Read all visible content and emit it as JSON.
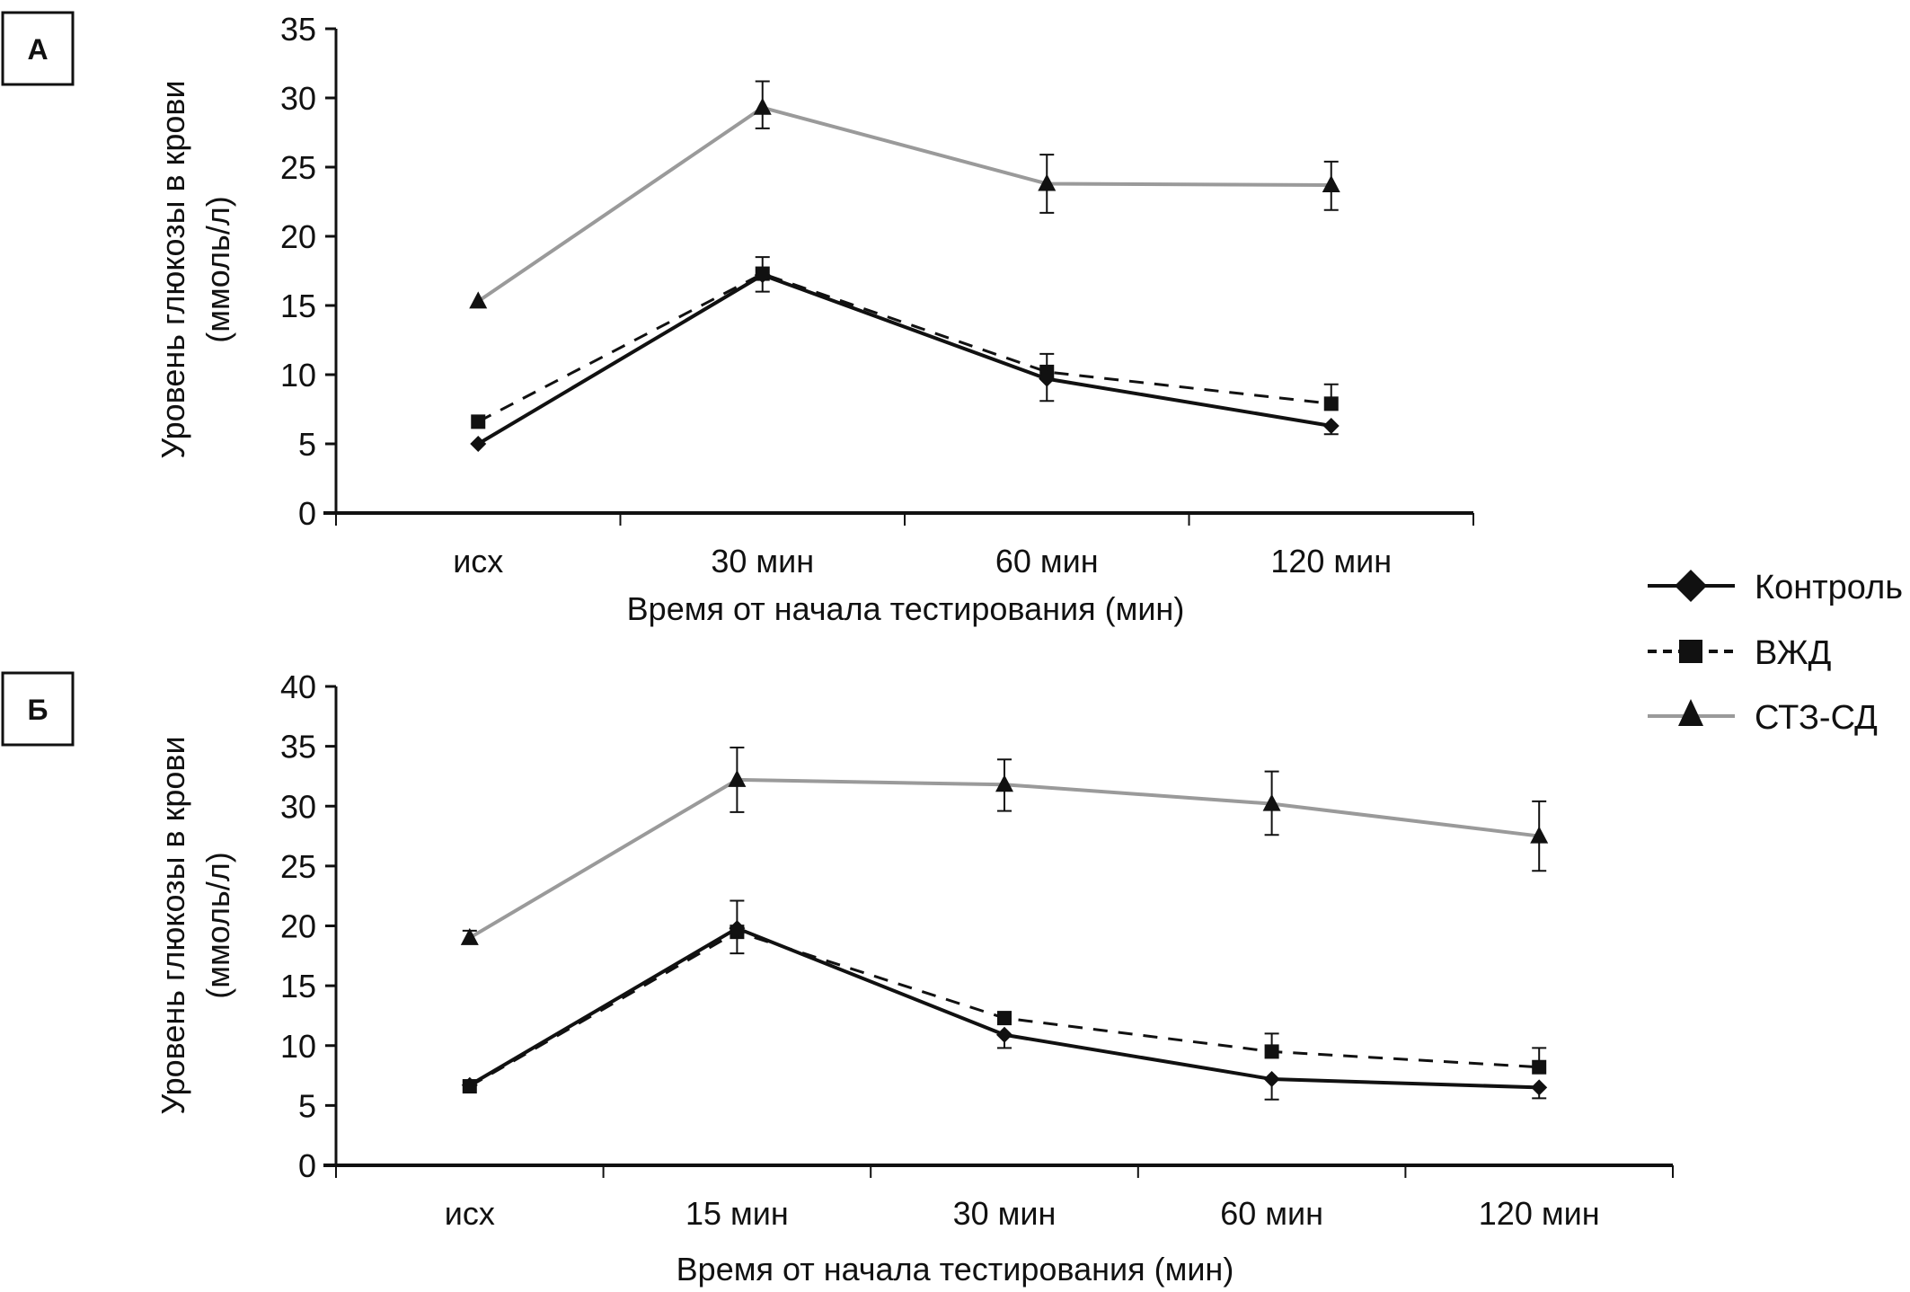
{
  "chart_data": [
    {
      "type": "line",
      "panel_label": "А",
      "title": "",
      "xlabel": "Время от начала тестирования (мин)",
      "ylabel": [
        "Уровень глюкозы в крови",
        "(ммоль/л)"
      ],
      "categories": [
        "исх",
        "30 мин",
        "60 мин",
        "120 мин"
      ],
      "ylim": [
        0,
        35
      ],
      "yticks": [
        0,
        5,
        10,
        15,
        20,
        25,
        30,
        35
      ],
      "grid": false,
      "series": [
        {
          "name": "Контроль",
          "style": "solid-black",
          "marker": "diamond",
          "values": [
            5.0,
            17.2,
            9.7,
            6.3
          ],
          "err_low": [
            null,
            16.0,
            8.1,
            5.7
          ],
          "err_high": [
            null,
            null,
            null,
            null
          ]
        },
        {
          "name": "ВЖД",
          "style": "dashed-black",
          "marker": "square",
          "values": [
            6.6,
            17.3,
            10.2,
            7.9
          ],
          "err_low": [
            null,
            null,
            null,
            null
          ],
          "err_high": [
            null,
            18.5,
            11.5,
            9.3
          ]
        },
        {
          "name": "СТЗ-СД",
          "style": "solid-gray",
          "marker": "triangle",
          "values": [
            15.3,
            29.3,
            23.8,
            23.7
          ],
          "err_low": [
            null,
            27.8,
            21.7,
            21.9
          ],
          "err_high": [
            null,
            31.2,
            25.9,
            25.4
          ]
        }
      ]
    },
    {
      "type": "line",
      "panel_label": "Б",
      "title": "",
      "xlabel": "Время от начала тестирования (мин)",
      "ylabel": [
        "Уровень глюкозы в крови",
        "(ммоль/л)"
      ],
      "categories": [
        "исх",
        "15 мин",
        "30 мин",
        "60 мин",
        "120 мин"
      ],
      "ylim": [
        0,
        40
      ],
      "yticks": [
        0,
        5,
        10,
        15,
        20,
        25,
        30,
        35,
        40
      ],
      "grid": false,
      "series": [
        {
          "name": "Контроль",
          "style": "solid-black",
          "marker": "diamond",
          "values": [
            6.7,
            19.8,
            10.9,
            7.2,
            6.5
          ],
          "err_low": [
            null,
            17.7,
            9.8,
            5.5,
            5.6
          ],
          "err_high": [
            null,
            null,
            null,
            null,
            null
          ]
        },
        {
          "name": "ВЖД",
          "style": "dashed-black",
          "marker": "square",
          "values": [
            6.6,
            19.5,
            12.3,
            9.5,
            8.2
          ],
          "err_low": [
            null,
            null,
            null,
            null,
            null
          ],
          "err_high": [
            null,
            22.1,
            null,
            11.0,
            9.8
          ]
        },
        {
          "name": "СТЗ-СД",
          "style": "solid-gray",
          "marker": "triangle",
          "values": [
            19.0,
            32.2,
            31.8,
            30.2,
            27.5
          ],
          "err_low": [
            null,
            29.5,
            29.6,
            27.6,
            24.6
          ],
          "err_high": [
            19.6,
            34.9,
            33.9,
            32.9,
            30.4
          ]
        }
      ]
    }
  ],
  "legend": {
    "placement": "right",
    "items": [
      {
        "label": "Контроль",
        "marker": "diamond",
        "style": "solid-black"
      },
      {
        "label": "ВЖД",
        "marker": "square",
        "style": "dashed-black"
      },
      {
        "label": "СТЗ-СД",
        "marker": "triangle",
        "style": "solid-gray"
      }
    ]
  },
  "colors": {
    "black": "#111111",
    "gray": "#9a9a9a"
  }
}
